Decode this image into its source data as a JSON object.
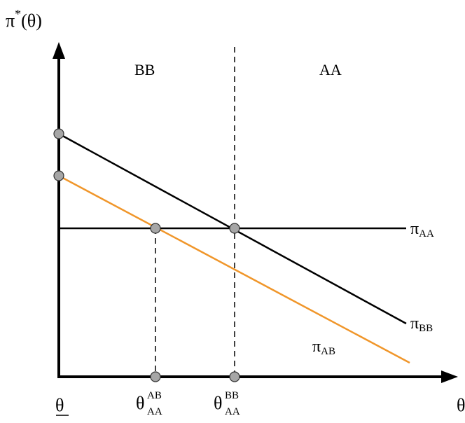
{
  "colors": {
    "axis": "#000000",
    "line_black": "#000000",
    "line_orange": "#f0962a",
    "point_fill": "#a6a6a6",
    "point_stroke": "#333333"
  },
  "y_axis_label": {
    "base": "π",
    "sup": "*",
    "arg": "(θ)"
  },
  "x_axis_label": "θ",
  "x_min_label": "θ",
  "regions": {
    "left": "BB",
    "right": "AA"
  },
  "lines": {
    "pi_AA": {
      "base": "π",
      "sub": "AA"
    },
    "pi_BB": {
      "base": "π",
      "sub": "BB"
    },
    "pi_AB": {
      "base": "π",
      "sub": "AB"
    }
  },
  "thresholds": {
    "ab": {
      "base": "θ",
      "sup": "AB",
      "sub": "AA"
    },
    "bb": {
      "base": "θ",
      "sup": "BB",
      "sub": "AA"
    }
  },
  "icons": [
    "x-axis-arrow-icon",
    "y-axis-arrow-icon"
  ]
}
